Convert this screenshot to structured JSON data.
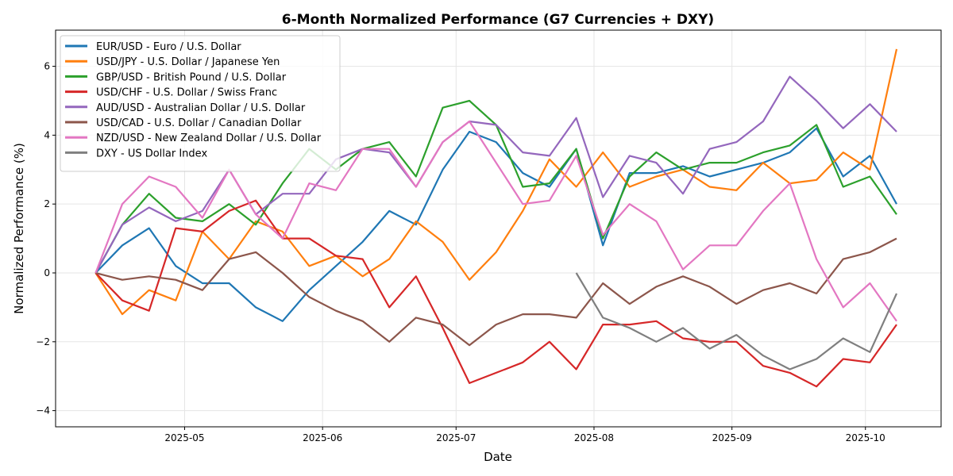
{
  "chart_data": {
    "type": "line",
    "title": "6-Month Normalized Performance (G7 Currencies + DXY)",
    "xlabel": "Date",
    "ylabel": "Normalized Performance (%)",
    "xlim": [
      "2025-04-02",
      "2025-10-18"
    ],
    "ylim": [
      -4.47,
      7.05
    ],
    "grid": true,
    "legend_position": "top-left",
    "x_ticks": [
      "2025-05",
      "2025-06",
      "2025-07",
      "2025-08",
      "2025-09",
      "2025-10"
    ],
    "x_tick_dates": [
      "2025-05-01",
      "2025-06-01",
      "2025-07-01",
      "2025-08-01",
      "2025-09-01",
      "2025-10-01"
    ],
    "y_ticks": [
      -4,
      -2,
      0,
      2,
      4,
      6
    ],
    "x": [
      "2025-04-11",
      "2025-04-17",
      "2025-04-23",
      "2025-04-29",
      "2025-05-05",
      "2025-05-11",
      "2025-05-17",
      "2025-05-23",
      "2025-05-29",
      "2025-06-04",
      "2025-06-10",
      "2025-06-16",
      "2025-06-22",
      "2025-06-28",
      "2025-07-04",
      "2025-07-10",
      "2025-07-16",
      "2025-07-22",
      "2025-07-28",
      "2025-08-03",
      "2025-08-09",
      "2025-08-15",
      "2025-08-21",
      "2025-08-27",
      "2025-09-02",
      "2025-09-08",
      "2025-09-14",
      "2025-09-20",
      "2025-09-26",
      "2025-10-02",
      "2025-10-08"
    ],
    "series": [
      {
        "name": "EUR/USD - Euro / U.S. Dollar",
        "color": "#1f77b4",
        "values": [
          0,
          0.8,
          1.3,
          0.2,
          -0.3,
          -0.3,
          -1.0,
          -1.4,
          -0.5,
          0.2,
          0.9,
          1.8,
          1.4,
          3.0,
          4.1,
          3.8,
          2.9,
          2.5,
          3.6,
          0.8,
          2.9,
          2.9,
          3.1,
          2.8,
          3.0,
          3.2,
          3.5,
          4.2,
          2.8,
          3.4,
          2.0
        ]
      },
      {
        "name": "USD/JPY - U.S. Dollar / Japanese Yen",
        "color": "#ff7f0e",
        "values": [
          0,
          -1.2,
          -0.5,
          -0.8,
          1.2,
          0.4,
          1.5,
          1.2,
          0.2,
          0.5,
          -0.1,
          0.4,
          1.5,
          0.9,
          -0.2,
          0.6,
          1.8,
          3.3,
          2.5,
          3.5,
          2.5,
          2.8,
          3.0,
          2.5,
          2.4,
          3.2,
          2.6,
          2.7,
          3.5,
          3.0,
          6.5
        ]
      },
      {
        "name": "GBP/USD - British Pound / U.S. Dollar",
        "color": "#2ca02c",
        "values": [
          0,
          1.4,
          2.3,
          1.6,
          1.5,
          2.0,
          1.4,
          2.6,
          3.6,
          3.0,
          3.6,
          3.8,
          2.8,
          4.8,
          5.0,
          4.3,
          2.5,
          2.6,
          3.6,
          1.0,
          2.8,
          3.5,
          3.0,
          3.2,
          3.2,
          3.5,
          3.7,
          4.3,
          2.5,
          2.8,
          1.7
        ]
      },
      {
        "name": "USD/CHF - U.S. Dollar / Swiss Franc",
        "color": "#d62728",
        "values": [
          0,
          -0.8,
          -1.1,
          1.3,
          1.2,
          1.8,
          2.1,
          1.0,
          1.0,
          0.5,
          0.4,
          -1.0,
          -0.1,
          -1.6,
          -3.2,
          -2.9,
          -2.6,
          -2.0,
          -2.8,
          -1.5,
          -1.5,
          -1.4,
          -1.9,
          -2.0,
          -2.0,
          -2.7,
          -2.9,
          -3.3,
          -2.5,
          -2.6,
          -1.5
        ]
      },
      {
        "name": "AUD/USD - Australian Dollar / U.S. Dollar",
        "color": "#9467bd",
        "values": [
          0,
          1.4,
          1.9,
          1.5,
          1.8,
          3.0,
          1.7,
          2.3,
          2.3,
          3.3,
          3.6,
          3.5,
          2.5,
          3.8,
          4.4,
          4.3,
          3.5,
          3.4,
          4.5,
          2.2,
          3.4,
          3.2,
          2.3,
          3.6,
          3.8,
          4.4,
          5.7,
          5.0,
          4.2,
          4.9,
          4.1
        ]
      },
      {
        "name": "USD/CAD - U.S. Dollar / Canadian Dollar",
        "color": "#8c564b",
        "values": [
          0,
          -0.2,
          -0.1,
          -0.2,
          -0.5,
          0.4,
          0.6,
          0.0,
          -0.7,
          -1.1,
          -1.4,
          -2.0,
          -1.3,
          -1.5,
          -2.1,
          -1.5,
          -1.2,
          -1.2,
          -1.3,
          -0.3,
          -0.9,
          -0.4,
          -0.1,
          -0.4,
          -0.9,
          -0.5,
          -0.3,
          -0.6,
          0.4,
          0.6,
          1.0
        ]
      },
      {
        "name": "NZD/USD - New Zealand Dollar / U.S. Dollar",
        "color": "#e377c2",
        "values": [
          0,
          2.0,
          2.8,
          2.5,
          1.6,
          3.0,
          1.7,
          1.0,
          2.6,
          2.4,
          3.6,
          3.6,
          2.5,
          3.8,
          4.4,
          3.2,
          2.0,
          2.1,
          3.4,
          1.1,
          2.0,
          1.5,
          0.1,
          0.8,
          0.8,
          1.8,
          2.6,
          0.4,
          -1.0,
          -0.3,
          -1.4
        ]
      },
      {
        "name": "DXY - US Dollar Index",
        "color": "#7f7f7f",
        "values": [
          null,
          null,
          null,
          null,
          null,
          null,
          null,
          null,
          null,
          null,
          null,
          null,
          null,
          null,
          null,
          null,
          null,
          null,
          0,
          -1.3,
          -1.6,
          -2.0,
          -1.6,
          -2.2,
          -1.8,
          -2.4,
          -2.8,
          -2.5,
          -1.9,
          -2.3,
          -0.6
        ]
      }
    ]
  }
}
